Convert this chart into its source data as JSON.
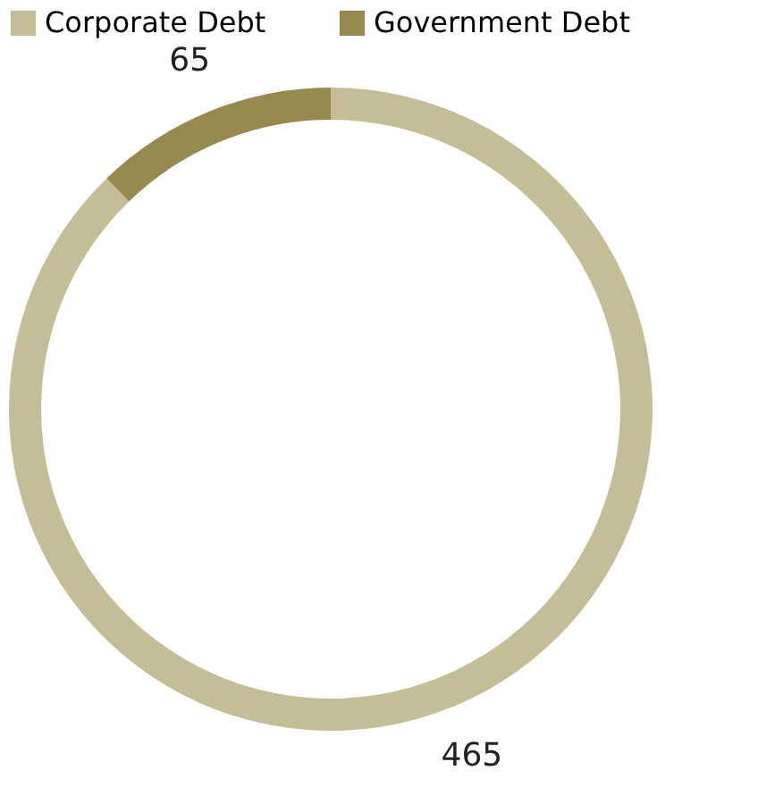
{
  "chart_data": {
    "type": "donut",
    "categories": [
      "Corporate Debt",
      "Government Debt"
    ],
    "values": [
      465,
      65
    ],
    "colors": [
      "#c5bd98",
      "#968a50"
    ],
    "data_labels": true,
    "legend": "top"
  }
}
